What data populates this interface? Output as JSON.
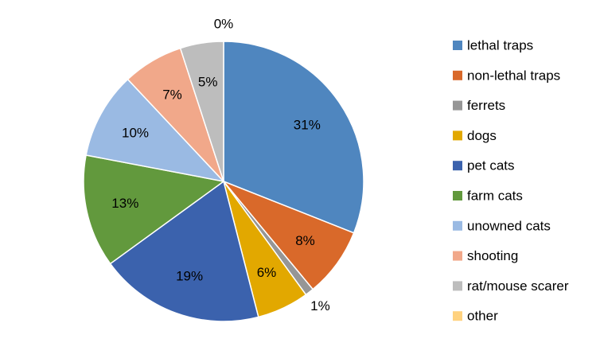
{
  "chart_data": {
    "type": "pie",
    "title": "",
    "legend_position": "right",
    "slices": [
      {
        "label": "lethal traps",
        "value": 31,
        "data_label": "31%",
        "color": "#4F86BF"
      },
      {
        "label": "non-lethal traps",
        "value": 8,
        "data_label": "8%",
        "color": "#D9692A"
      },
      {
        "label": "ferrets",
        "value": 1,
        "data_label": "1%",
        "color": "#969696"
      },
      {
        "label": "dogs",
        "value": 6,
        "data_label": "6%",
        "color": "#E2A800"
      },
      {
        "label": "pet cats",
        "value": 19,
        "data_label": "19%",
        "color": "#3B62AD"
      },
      {
        "label": "farm cats",
        "value": 13,
        "data_label": "13%",
        "color": "#62993D"
      },
      {
        "label": "unowned cats",
        "value": 10,
        "data_label": "10%",
        "color": "#9ABAE3"
      },
      {
        "label": "shooting",
        "value": 7,
        "data_label": "7%",
        "color": "#F1A88A"
      },
      {
        "label": "rat/mouse scarer",
        "value": 5,
        "data_label": "5%",
        "color": "#BDBDBD"
      },
      {
        "label": "other",
        "value": 0,
        "data_label": "0%",
        "color": "#FFD27F"
      }
    ]
  }
}
